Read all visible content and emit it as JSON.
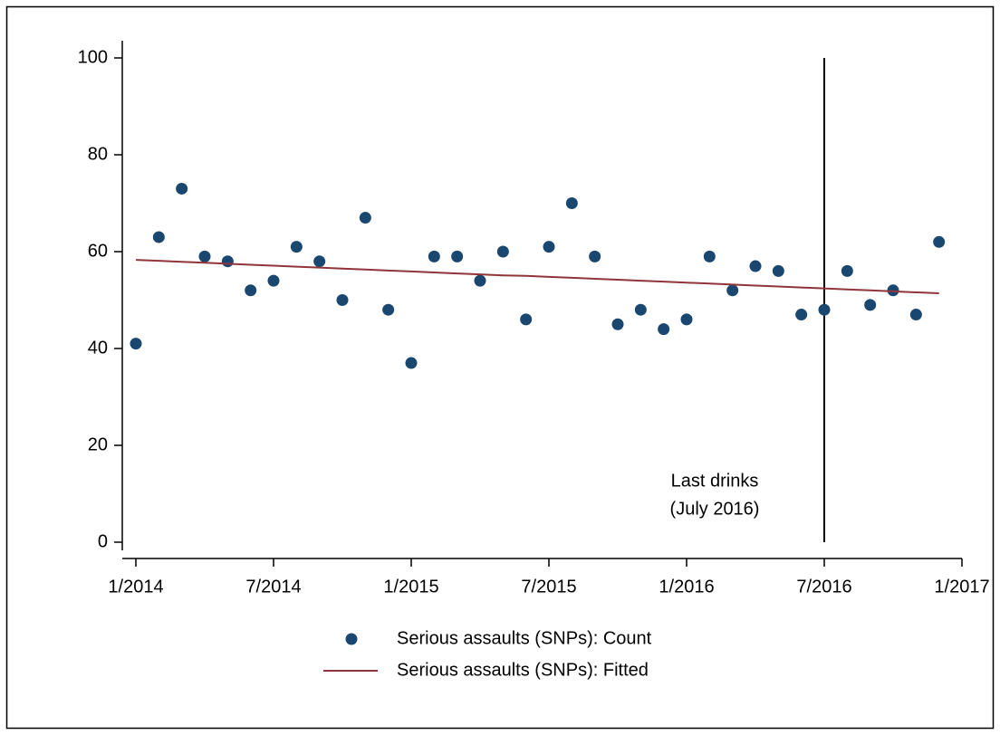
{
  "chart_data": {
    "type": "scatter",
    "x": [
      "1/2014",
      "2/2014",
      "3/2014",
      "4/2014",
      "5/2014",
      "6/2014",
      "7/2014",
      "8/2014",
      "9/2014",
      "10/2014",
      "11/2014",
      "12/2014",
      "1/2015",
      "2/2015",
      "3/2015",
      "4/2015",
      "5/2015",
      "6/2015",
      "7/2015",
      "8/2015",
      "9/2015",
      "10/2015",
      "11/2015",
      "12/2015",
      "1/2016",
      "2/2016",
      "3/2016",
      "4/2016",
      "5/2016",
      "6/2016",
      "7/2016",
      "8/2016",
      "9/2016",
      "10/2016",
      "11/2016",
      "12/2016"
    ],
    "series": [
      {
        "name": "Serious assaults (SNPs): Count",
        "type": "scatter",
        "color": "#1a476f",
        "values": [
          41,
          63,
          73,
          59,
          58,
          52,
          54,
          61,
          58,
          50,
          67,
          48,
          37,
          59,
          59,
          54,
          60,
          46,
          61,
          70,
          59,
          45,
          48,
          44,
          46,
          59,
          52,
          57,
          56,
          47,
          48,
          56,
          49,
          52,
          47,
          62
        ]
      },
      {
        "name": "Serious assaults (SNPs): Fitted",
        "type": "line",
        "color": "#90353b",
        "values": [
          58.3,
          58.1,
          57.9,
          57.7,
          57.5,
          57.3,
          57.1,
          56.9,
          56.7,
          56.5,
          56.3,
          56.1,
          55.9,
          55.7,
          55.5,
          55.3,
          55.1,
          55.0,
          54.8,
          54.6,
          54.4,
          54.2,
          54.0,
          53.8,
          53.6,
          53.4,
          53.2,
          53.0,
          52.8,
          52.6,
          52.4,
          52.2,
          52.0,
          51.8,
          51.6,
          51.4
        ]
      }
    ],
    "xlim": [
      "1/2014",
      "1/2017"
    ],
    "xticks": [
      "1/2014",
      "7/2014",
      "1/2015",
      "7/2015",
      "1/2016",
      "7/2016",
      "1/2017"
    ],
    "ylim": [
      0,
      100
    ],
    "yticks": [
      0,
      20,
      40,
      60,
      80,
      100
    ],
    "annotation": {
      "x": "7/2016",
      "text": [
        "Last drinks",
        "(July 2016)"
      ]
    }
  }
}
